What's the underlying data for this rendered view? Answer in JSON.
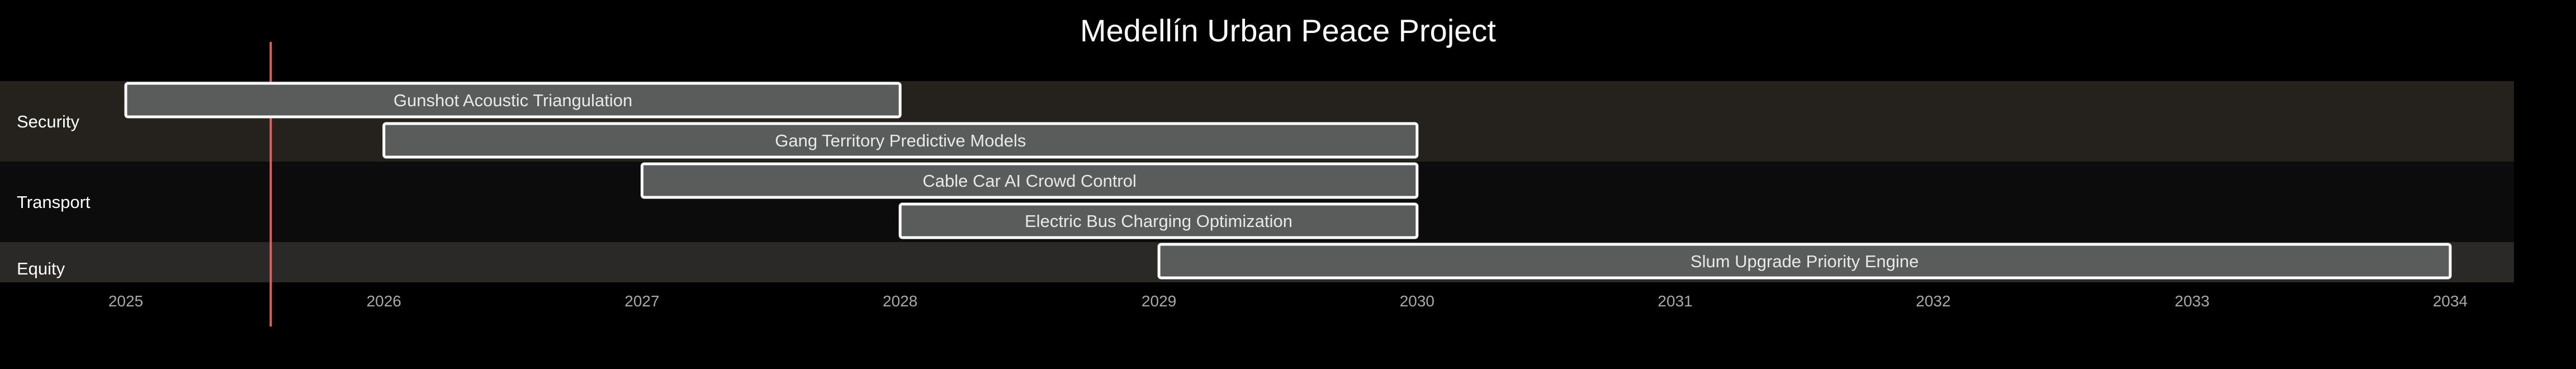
{
  "chart_data": {
    "type": "gantt",
    "title": "Medellín Urban Peace Project",
    "x_ticks": [
      "2025",
      "2026",
      "2027",
      "2028",
      "2029",
      "2030",
      "2031",
      "2032",
      "2033",
      "2034"
    ],
    "xlim": [
      "2025-01-01",
      "2034-01-01"
    ],
    "today_marker": "2025-07-25",
    "sections": [
      {
        "name": "Security",
        "tasks": [
          {
            "label": "Gunshot Acoustic Triangulation",
            "start": "2025-01-01",
            "end": "2028-01-01"
          },
          {
            "label": "Gang Territory Predictive Models",
            "start": "2026-01-01",
            "end": "2030-01-01"
          }
        ]
      },
      {
        "name": "Transport",
        "tasks": [
          {
            "label": "Cable Car AI Crowd Control",
            "start": "2027-01-01",
            "end": "2030-01-01"
          },
          {
            "label": "Electric Bus Charging Optimization",
            "start": "2028-01-01",
            "end": "2030-01-01"
          }
        ]
      },
      {
        "name": "Equity",
        "tasks": [
          {
            "label": "Slum Upgrade Priority Engine",
            "start": "2029-01-01",
            "end": "2034-01-01"
          }
        ]
      }
    ],
    "colors": {
      "background": "#000000",
      "band_security": "#25221d",
      "band_transport": "#0c0c0c",
      "band_equity": "#2a2927",
      "bar_fill": "#5a5c5c",
      "bar_stroke": "#ffffff",
      "today_line": "#e06060"
    }
  }
}
